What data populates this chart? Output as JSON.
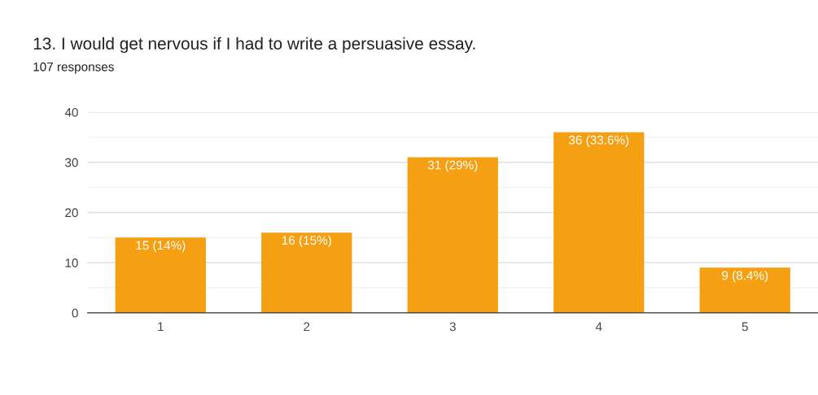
{
  "chart_data": {
    "type": "bar",
    "title": "13. I would get nervous if I had to write a persuasive essay.",
    "subtitle": "107 responses",
    "categories": [
      "1",
      "2",
      "3",
      "4",
      "5"
    ],
    "values": [
      15,
      16,
      31,
      36,
      9
    ],
    "value_labels": [
      "15 (14%)",
      "16 (15%)",
      "31 (29%)",
      "36 (33.6%)",
      "9 (8.4%)"
    ],
    "color": "#f4a012",
    "ylim": [
      0,
      40
    ],
    "yticks": [
      0,
      {
        "value": 5,
        "label": null
      },
      10,
      {
        "value": 15,
        "label": null
      },
      20,
      {
        "value": 25,
        "label": null
      },
      30,
      {
        "value": 35,
        "label": null
      },
      40
    ],
    "grid": "y"
  }
}
